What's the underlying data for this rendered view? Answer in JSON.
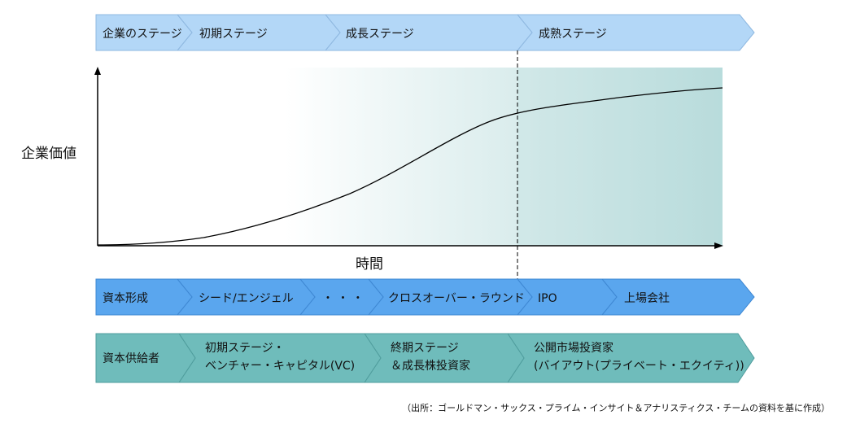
{
  "rows": {
    "stage": {
      "header": "企業のステージ",
      "items": [
        "初期ステージ",
        "成長ステージ",
        "成熟ステージ"
      ]
    },
    "capital": {
      "header": "資本形成",
      "items": [
        "シード/エンジェル",
        "・ ・ ・",
        "クロスオーバー・ラウンド",
        "IPO",
        "上場会社"
      ]
    },
    "provider": {
      "header": "資本供給者",
      "items": [
        [
          "初期ステージ・",
          "ベンチャー・キャピタル(VC)"
        ],
        [
          "終期ステージ",
          "＆成長株投資家"
        ],
        [
          "公開市場投資家",
          "(バイアウト(プライベート・エクイティ))"
        ]
      ]
    }
  },
  "chart": {
    "ylabel": "企業価値",
    "xlabel": "時間"
  },
  "source": "（出所：ゴールドマン・サックス・プライム・インサイト＆アナリスティクス・チームの資料を基に作成）",
  "colors": {
    "stage_fill": "#b3d7f7",
    "capital_fill": "#5aa6ee",
    "provider_fill": "#6fbcbb",
    "gradient_start": "#ffffff",
    "gradient_end": "#b9dcdc"
  }
}
